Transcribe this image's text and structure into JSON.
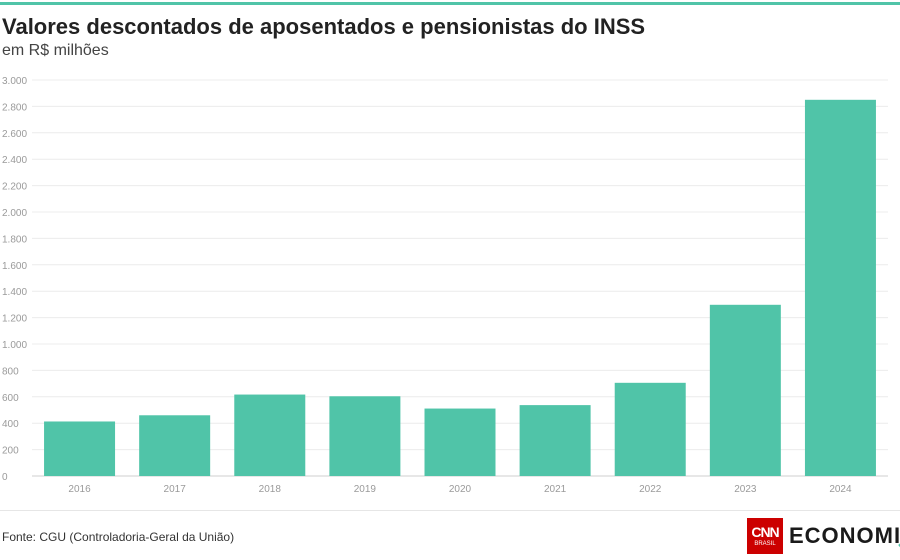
{
  "header": {
    "title": "Valores descontados de aposentados e pensionistas do INSS",
    "subtitle": "em R$ milhões"
  },
  "footer": {
    "source": "Fonte: CGU (Controladoria-Geral da União)",
    "logo_cnn": "CNN",
    "logo_brasil": "BRASIL",
    "logo_word": "ECONOMIA"
  },
  "colors": {
    "bar": "#50c4a8",
    "accent_rule": "#50c4a8",
    "logo_red": "#cc0000"
  },
  "chart_data": {
    "type": "bar",
    "title": "Valores descontados de aposentados e pensionistas do INSS",
    "subtitle": "em R$ milhões",
    "xlabel": "",
    "ylabel": "",
    "categories": [
      "2016",
      "2017",
      "2018",
      "2019",
      "2020",
      "2021",
      "2022",
      "2023",
      "2024"
    ],
    "values": [
      413,
      460,
      617,
      604,
      511,
      537,
      706,
      1297,
      2850
    ],
    "ylim": [
      0,
      3000
    ],
    "yticks": [
      0,
      200,
      400,
      600,
      800,
      1000,
      1200,
      1400,
      1600,
      1800,
      2000,
      2200,
      2400,
      2600,
      2800,
      3000
    ],
    "ytick_labels": [
      "0",
      "200",
      "400",
      "600",
      "800",
      "1.000",
      "1.200",
      "1.400",
      "1.600",
      "1.800",
      "2.000",
      "2.200",
      "2.400",
      "2.600",
      "2.800",
      "3.000"
    ],
    "grid": true,
    "legend": "none"
  }
}
